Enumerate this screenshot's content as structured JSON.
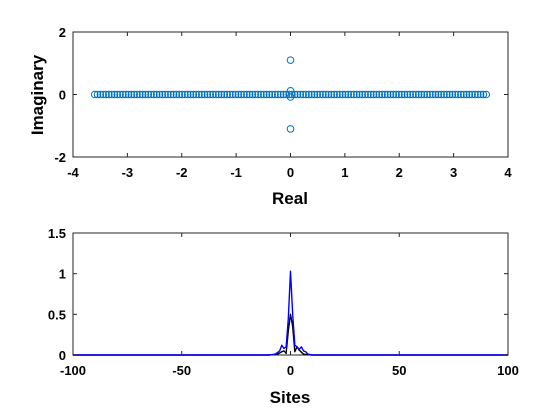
{
  "chart_data": [
    {
      "type": "scatter",
      "title": "",
      "xlabel": "Real",
      "ylabel": "Imaginary",
      "xlim": [
        -4,
        4
      ],
      "ylim": [
        -2,
        2
      ],
      "xticks": [
        "-4",
        "-3",
        "-2",
        "-1",
        "0",
        "1",
        "2",
        "3",
        "4"
      ],
      "yticks": [
        "-2",
        "0",
        "2"
      ],
      "grid": false,
      "marker": "open-circle",
      "series": [
        {
          "color": "#0072BD",
          "points_dense_real_axis": {
            "x_range": [
              -3.6,
              3.6
            ],
            "count": 140,
            "y": 0
          },
          "points": [
            {
              "x": 0,
              "y": 1.1
            },
            {
              "x": 0,
              "y": 0.12
            },
            {
              "x": 0,
              "y": -0.08
            },
            {
              "x": 0,
              "y": -1.1
            }
          ]
        }
      ]
    },
    {
      "type": "line",
      "title": "",
      "xlabel": "Sites",
      "ylabel": "",
      "xlim": [
        -100,
        100
      ],
      "ylim": [
        0,
        1.5
      ],
      "xticks": [
        "-100",
        "-50",
        "0",
        "50",
        "100"
      ],
      "yticks": [
        "0",
        "0.5",
        "1",
        "1.5"
      ],
      "grid": false,
      "series": [
        {
          "color": "#000000",
          "x": [
            -100,
            -10,
            -6,
            -4,
            -3,
            -2,
            -1,
            0,
            1,
            2,
            3,
            4,
            6,
            10,
            100
          ],
          "y": [
            0,
            0,
            0.01,
            0.04,
            0.05,
            0.02,
            0.3,
            0.5,
            0.35,
            0.04,
            0.1,
            0.06,
            0.01,
            0,
            0
          ]
        },
        {
          "color": "#0000FF",
          "x": [
            -100,
            -10,
            -7,
            -5,
            -4,
            -3,
            -2,
            -1,
            0,
            1,
            2,
            3,
            4,
            5,
            6,
            7,
            8,
            10,
            100
          ],
          "y": [
            0,
            0,
            0.01,
            0.05,
            0.12,
            0.08,
            0.1,
            0.45,
            1.03,
            0.5,
            0.12,
            0.1,
            0.07,
            0.1,
            0.05,
            0.04,
            0.01,
            0,
            0
          ]
        }
      ]
    }
  ]
}
